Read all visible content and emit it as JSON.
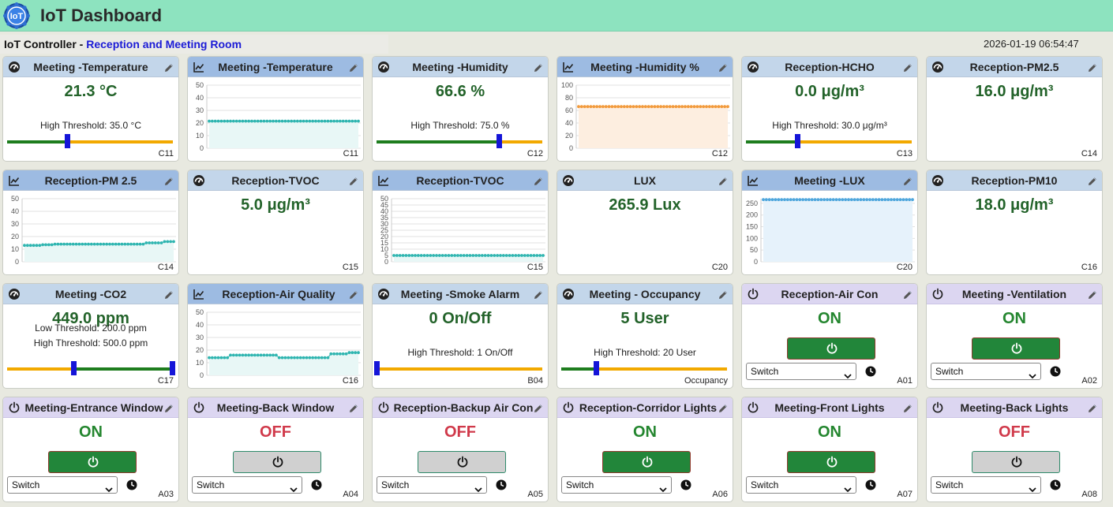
{
  "header": {
    "title": "IoT Dashboard",
    "logo_text": "IoT",
    "controller_label": "IoT Controller",
    "controller_sep": " - ",
    "location": "Reception and Meeting Room",
    "datetime": "2026-01-19 06:54:47"
  },
  "colors": {
    "accent_header": "#8de3bf",
    "ok_green": "#22863a",
    "off_red": "#d0394a",
    "threshold_orange": "#f2a900"
  },
  "cards": [
    {
      "type": "gauge",
      "title": "Meeting -Temperature",
      "value": "21.3 °C",
      "thresholds": [
        "High Threshold: 35.0 °C"
      ],
      "id": "C11",
      "level": 0.36
    },
    {
      "type": "chart",
      "title": "Meeting -Temperature",
      "id": "C11"
    },
    {
      "type": "gauge",
      "title": "Meeting -Humidity",
      "value": "66.6 %",
      "thresholds": [
        "High Threshold: 75.0 %"
      ],
      "id": "C12",
      "level": 0.74
    },
    {
      "type": "chart",
      "title": "Meeting -Humidity %",
      "id": "C12"
    },
    {
      "type": "gauge",
      "title": "Reception-HCHO",
      "value": "0.0 μg/m³",
      "thresholds": [
        "High Threshold: 30.0 μg/m³"
      ],
      "id": "C13",
      "level": 0.31
    },
    {
      "type": "gauge",
      "title": "Reception-PM2.5",
      "value": "16.0 μg/m³",
      "thresholds": [],
      "id": "C14"
    },
    {
      "type": "chart",
      "title": "Reception-PM 2.5",
      "id": "C14"
    },
    {
      "type": "gauge",
      "title": "Reception-TVOC",
      "value": "5.0 μg/m³",
      "thresholds": [],
      "id": "C15"
    },
    {
      "type": "chart",
      "title": "Reception-TVOC",
      "id": "C15"
    },
    {
      "type": "gauge",
      "title": "LUX",
      "value": "265.9 Lux",
      "thresholds": [],
      "id": "C20"
    },
    {
      "type": "chart",
      "title": "Meeting -LUX",
      "id": "C20"
    },
    {
      "type": "gauge",
      "title": "Reception-PM10",
      "value": "18.0 μg/m³",
      "thresholds": [],
      "id": "C16"
    },
    {
      "type": "gauge",
      "title": "Meeting -CO2",
      "value": "449.0 ppm",
      "thresholds": [
        "Low Threshold: 200.0 ppm",
        "High Threshold: 500.0 ppm"
      ],
      "id": "C17",
      "level": 0.4,
      "dual": true
    },
    {
      "type": "chart",
      "title": "Reception-Air Quality",
      "id": "C16"
    },
    {
      "type": "gauge",
      "title": "Meeting -Smoke Alarm",
      "value": "0 On/Off",
      "thresholds": [
        "High Threshold: 1 On/Off"
      ],
      "id": "B04",
      "level": 0.0
    },
    {
      "type": "gauge",
      "title": "Meeting - Occupancy",
      "value": "5 User",
      "thresholds": [
        "High Threshold: 20 User"
      ],
      "id": "Occupancy",
      "level": 0.21
    },
    {
      "type": "switch",
      "title": "Reception-Air Con",
      "state": "ON",
      "mode": "Switch",
      "id": "A01"
    },
    {
      "type": "switch",
      "title": "Meeting -Ventilation",
      "state": "ON",
      "mode": "Switch",
      "id": "A02"
    },
    {
      "type": "switch",
      "title": "Meeting-Entrance Window",
      "state": "ON",
      "mode": "Switch",
      "id": "A03"
    },
    {
      "type": "switch",
      "title": "Meeting-Back Window",
      "state": "OFF",
      "mode": "Switch",
      "id": "A04"
    },
    {
      "type": "switch",
      "title": "Reception-Backup Air Con",
      "state": "OFF",
      "mode": "Switch",
      "id": "A05"
    },
    {
      "type": "switch",
      "title": "Reception-Corridor Lights",
      "state": "ON",
      "mode": "Switch",
      "id": "A06"
    },
    {
      "type": "switch",
      "title": "Meeting-Front Lights",
      "state": "ON",
      "mode": "Switch",
      "id": "A07"
    },
    {
      "type": "switch",
      "title": "Meeting-Back Lights",
      "state": "OFF",
      "mode": "Switch",
      "id": "A08"
    }
  ],
  "chart_data": [
    {
      "type": "line",
      "title": "Meeting -Temperature",
      "ylim": [
        0,
        50
      ],
      "yticks": [
        0,
        10,
        20,
        30,
        40,
        50
      ],
      "series": [
        {
          "values": [
            21.5,
            21.5,
            21.5,
            21.5,
            21.5,
            21.5,
            21.5,
            21.5,
            21.5,
            21.5,
            21.5,
            21.5,
            21.5,
            21.5,
            21.5,
            21.5,
            21.5,
            21.5,
            21.5,
            21.5,
            21.5,
            21.5,
            21.5,
            21.5,
            21.5,
            21.5,
            21.5,
            21.5,
            21.5,
            21.5,
            21.5,
            21.5,
            21.5,
            21.5,
            21.5,
            21.5,
            21.5,
            21.5,
            21.5,
            21.5,
            21.5,
            21.5,
            21.5,
            21.5,
            21.5,
            21.5,
            21.5,
            21.5,
            21.5,
            21.5
          ]
        }
      ],
      "color": "#2fb5b0",
      "fill": "#e8f7f6"
    },
    {
      "type": "line",
      "title": "Meeting -Humidity %",
      "ylim": [
        0,
        100
      ],
      "yticks": [
        0,
        20,
        40,
        60,
        80,
        100
      ],
      "series": [
        {
          "values": [
            66,
            66,
            66,
            66,
            66,
            66,
            66,
            66,
            66,
            66,
            66,
            66,
            66,
            66,
            66,
            66,
            66,
            66,
            66,
            66,
            66,
            66,
            66,
            66,
            66,
            66,
            66,
            66,
            66,
            66,
            66,
            66,
            66,
            66,
            66,
            66,
            66,
            66,
            66,
            66,
            66,
            66,
            66,
            66,
            66,
            66,
            66,
            66,
            66,
            66
          ]
        }
      ],
      "color": "#f29a3b",
      "fill": "#fdeee0"
    },
    {
      "type": "line",
      "title": "Reception-PM 2.5",
      "ylim": [
        0,
        50
      ],
      "yticks": [
        0,
        10,
        20,
        30,
        40,
        50
      ],
      "series": [
        {
          "values": [
            13,
            13,
            13,
            13,
            13,
            13,
            13.5,
            13.5,
            13.5,
            13.5,
            14,
            14,
            14,
            14,
            14,
            14,
            14,
            14,
            14,
            14,
            14,
            14,
            14,
            14,
            14,
            14,
            14,
            14,
            14,
            14,
            14,
            14,
            14,
            14,
            14,
            14,
            14,
            14,
            14,
            14,
            15,
            15,
            15,
            15,
            15,
            15,
            16,
            16,
            16,
            16
          ]
        }
      ],
      "color": "#2fb5b0",
      "fill": "#e8f7f6"
    },
    {
      "type": "line",
      "title": "Reception-TVOC",
      "ylim": [
        0,
        50
      ],
      "yticks": [
        0,
        5,
        10,
        15,
        20,
        25,
        30,
        35,
        40,
        45,
        50
      ],
      "series": [
        {
          "values": [
            5,
            5,
            5,
            5,
            5,
            5,
            5,
            5,
            5,
            5,
            5,
            5,
            5,
            5,
            5,
            5,
            5,
            5,
            5,
            5,
            5,
            5,
            5,
            5,
            5,
            5,
            5,
            5,
            5,
            5,
            5,
            5,
            5,
            5,
            5,
            5,
            5,
            5,
            5,
            5,
            5,
            5,
            5,
            5,
            5,
            5,
            5,
            5,
            5,
            5
          ]
        }
      ],
      "color": "#2fb5b0",
      "fill": "#e8f7f6"
    },
    {
      "type": "line",
      "title": "Meeting -LUX",
      "ylim": [
        0,
        270
      ],
      "yticks": [
        0,
        50,
        100,
        150,
        200,
        250
      ],
      "series": [
        {
          "values": [
            266,
            266,
            266,
            266,
            266,
            266,
            266,
            266,
            266,
            266,
            266,
            266,
            266,
            266,
            266,
            266,
            266,
            266,
            266,
            266,
            266,
            266,
            266,
            266,
            266,
            266,
            266,
            266,
            266,
            266,
            266,
            266,
            266,
            266,
            266,
            266,
            266,
            266,
            266,
            266,
            266,
            266,
            266,
            266,
            266,
            266,
            266,
            266,
            266,
            266
          ]
        }
      ],
      "color": "#4ea6dc",
      "fill": "#e6f2fb"
    },
    {
      "type": "line",
      "title": "Reception-Air Quality",
      "ylim": [
        0,
        50
      ],
      "yticks": [
        0,
        10,
        20,
        30,
        40,
        50
      ],
      "series": [
        {
          "values": [
            14,
            14,
            14,
            14,
            14,
            14,
            14,
            16,
            16,
            16,
            16,
            16,
            16,
            16,
            16,
            16,
            16,
            16,
            16,
            16,
            16,
            16,
            16,
            14,
            14,
            14,
            14,
            14,
            14,
            14,
            14,
            14,
            14,
            14,
            14,
            14,
            14,
            14,
            14,
            14,
            17,
            17,
            17,
            17,
            17,
            17,
            18,
            18,
            18,
            18
          ]
        }
      ],
      "color": "#2fb5b0",
      "fill": "#e8f7f6"
    }
  ]
}
